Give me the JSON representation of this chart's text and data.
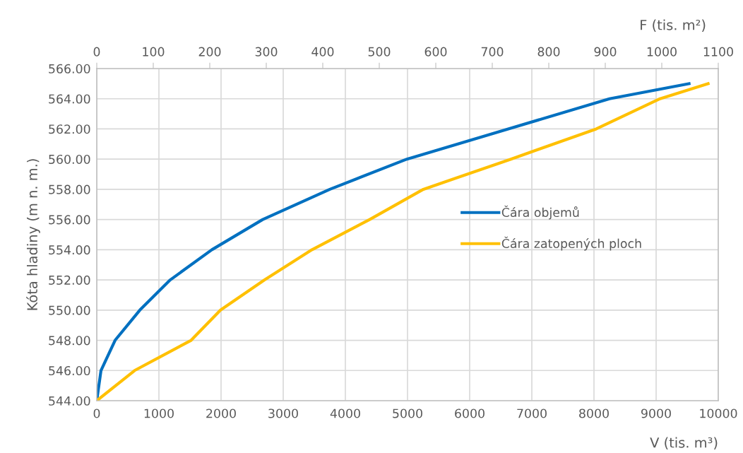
{
  "chart_data": {
    "type": "line",
    "xlabel": "V (tis. m³)",
    "x2label": "F (tis. m²)",
    "ylabel": "Kóta hladiny (m n. m.)",
    "series": [
      {
        "name": "Čára objemů",
        "color": "#0070c0",
        "x": [
          0,
          68,
          295,
          693,
          1182,
          1852,
          2670,
          3750,
          4990,
          6620,
          8250,
          9530
        ],
        "values": [
          544,
          546,
          548,
          550,
          552,
          554,
          556,
          558,
          560,
          562,
          564,
          565
        ]
      },
      {
        "name": "Čára zatopených ploch",
        "color": "#ffc000",
        "axis": "x2",
        "x": [
          0,
          67,
          167,
          219,
          297,
          381,
          483,
          578,
          733,
          884,
          997,
          1082
        ],
        "values": [
          544,
          546,
          548,
          550,
          552,
          554,
          556,
          558,
          560,
          562,
          564,
          565
        ]
      }
    ],
    "xlim": [
      0,
      10000
    ],
    "xticks": [
      0,
      1000,
      2000,
      3000,
      4000,
      5000,
      6000,
      7000,
      8000,
      9000,
      10000
    ],
    "x2lim": [
      0,
      1100
    ],
    "x2ticks": [
      0,
      100,
      200,
      300,
      400,
      500,
      600,
      700,
      800,
      900,
      1000,
      1100
    ],
    "ylim": [
      544,
      566
    ],
    "yticks": [
      {
        "value": 544,
        "label": "544.00"
      },
      {
        "value": 546,
        "label": "546.00"
      },
      {
        "value": 548,
        "label": "548.00"
      },
      {
        "value": 550,
        "label": "550.00"
      },
      {
        "value": 552,
        "label": "552.00"
      },
      {
        "value": 554,
        "label": "554.00"
      },
      {
        "value": 556,
        "label": "556.00"
      },
      {
        "value": 558,
        "label": "558.00"
      },
      {
        "value": 560,
        "label": "560.00"
      },
      {
        "value": 562,
        "label": "562.00"
      },
      {
        "value": 564,
        "label": "564.00"
      },
      {
        "value": 566,
        "label": "566.00"
      }
    ],
    "grid": true,
    "legend": "right",
    "marker": "none",
    "line_style": "solid"
  }
}
